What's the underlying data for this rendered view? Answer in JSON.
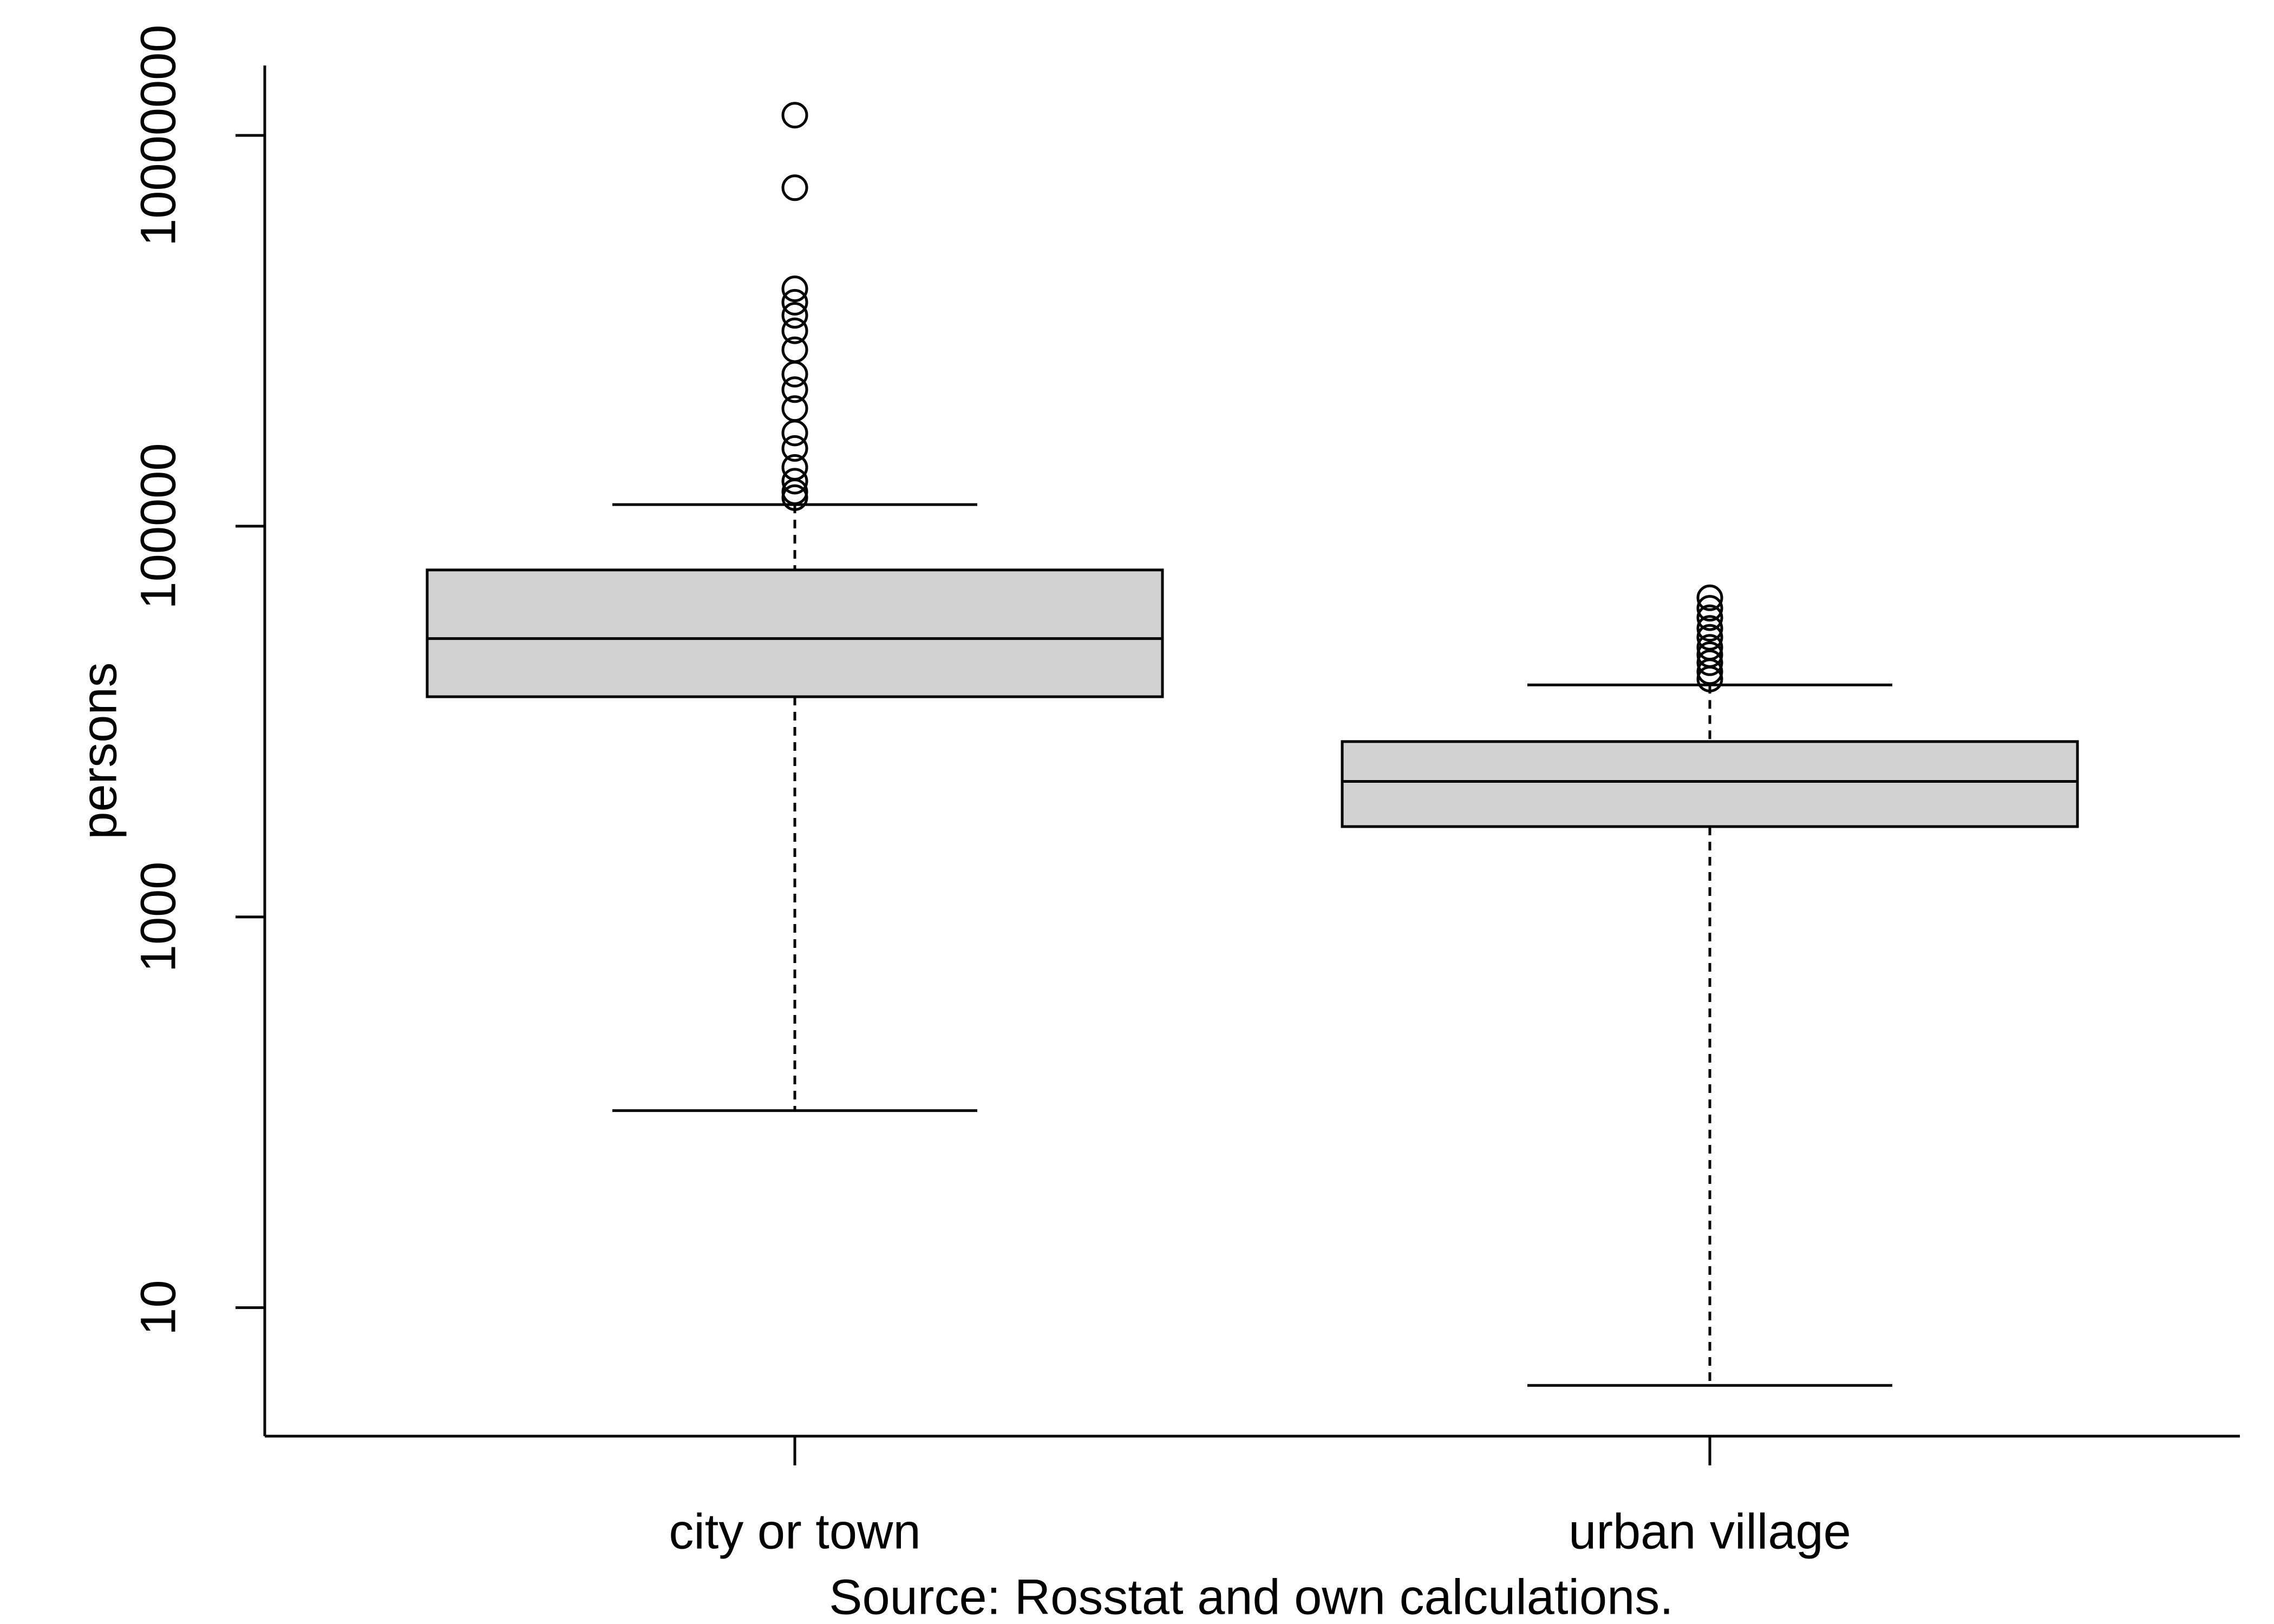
{
  "chart_data": {
    "type": "box",
    "categories": [
      "city or town",
      "urban village"
    ],
    "series": [
      {
        "min": 102,
        "q1": 13400,
        "median": 26600,
        "q3": 59700,
        "max": 129000,
        "outliers": [
          12700000,
          5400000,
          1640000,
          1400000,
          1200000,
          1000000,
          800000,
          600000,
          500000,
          400000,
          300000,
          250000,
          200000,
          170000,
          150000,
          140000
        ]
      },
      {
        "min": 4,
        "q1": 2900,
        "median": 4940,
        "q3": 7900,
        "max": 15400,
        "outliers": [
          43000,
          38000,
          34000,
          30000,
          27000,
          24000,
          22000,
          20000,
          18000,
          16500
        ]
      }
    ],
    "color": "#d3d3d3",
    "log_scale": true,
    "ylim": [
      2.2,
      22800000
    ],
    "yticks": [
      10,
      1000,
      100000,
      10000000
    ],
    "ylabel": "persons",
    "xlabel": "Source: Rosstat and own calculations."
  }
}
